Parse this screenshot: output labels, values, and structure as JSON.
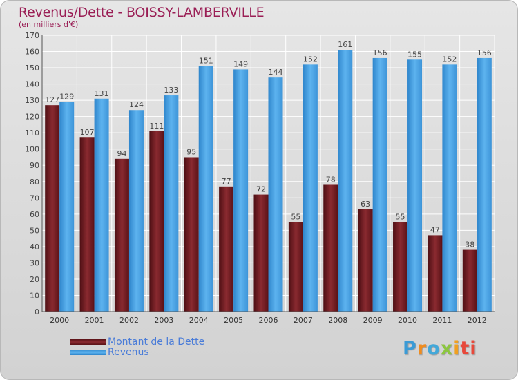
{
  "header": {
    "title": "Revenus/Dette - BOISSY-LAMBERVILLE",
    "subtitle": "(en milliers d'€)"
  },
  "legend": {
    "debt_label": "Montant de la Dette",
    "revenue_label": "Revenus"
  },
  "logo": {
    "text": "Proxiti",
    "letters": [
      "P",
      "r",
      "o",
      "x",
      "i",
      "ti"
    ]
  },
  "colors": {
    "debt": "#7a1a1f",
    "revenue": "#4aa3e6",
    "title": "#9a1e55",
    "legend_text": "#4a7cd8"
  },
  "chart_data": {
    "type": "bar",
    "title": "Revenus/Dette - BOISSY-LAMBERVILLE",
    "ylabel": "(en milliers d'€)",
    "xlabel": "",
    "categories": [
      "2000",
      "2001",
      "2002",
      "2003",
      "2004",
      "2005",
      "2006",
      "2007",
      "2008",
      "2009",
      "2010",
      "2011",
      "2012"
    ],
    "series": [
      {
        "name": "Montant de la Dette",
        "values": [
          127,
          107,
          94,
          111,
          95,
          77,
          72,
          55,
          78,
          63,
          55,
          47,
          38
        ]
      },
      {
        "name": "Revenus",
        "values": [
          129,
          131,
          124,
          133,
          151,
          149,
          144,
          152,
          161,
          156,
          155,
          152,
          156
        ]
      }
    ],
    "ylim": [
      0,
      170
    ],
    "yticks": [
      0,
      10,
      20,
      30,
      40,
      50,
      60,
      70,
      80,
      90,
      100,
      110,
      120,
      130,
      140,
      150,
      160,
      170
    ],
    "grid": true,
    "legend_position": "bottom-left"
  }
}
